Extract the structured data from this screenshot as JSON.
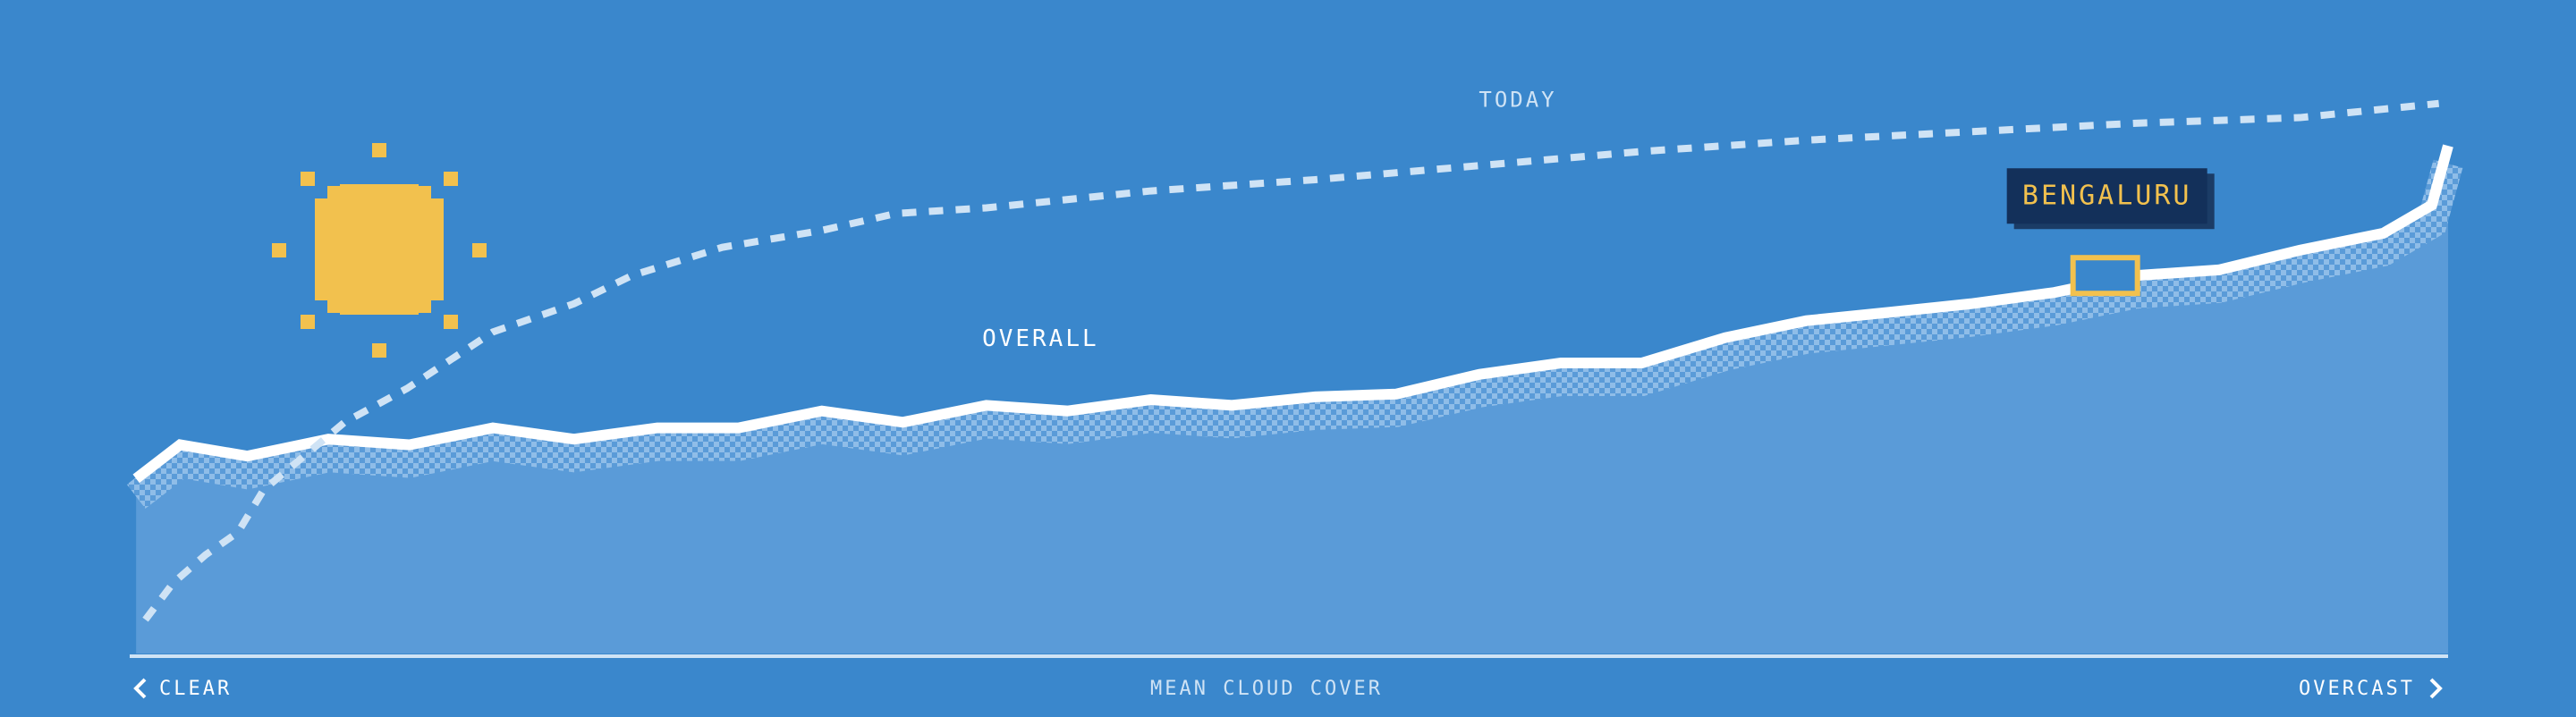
{
  "chart_data": {
    "type": "area",
    "title": "MEAN CLOUD COVER",
    "x_start_label": "CLEAR",
    "x_end_label": "OVERCAST",
    "xlim": [
      0,
      100
    ],
    "ylim": [
      0,
      100
    ],
    "series": [
      {
        "name": "OVERALL",
        "color": "#5a9bd8",
        "x": [
          0.2,
          2.1,
          5,
          8.5,
          12,
          15.6,
          19.1,
          22.7,
          26.2,
          29.8,
          33.3,
          36.9,
          40.4,
          44,
          47.5,
          51.1,
          54.6,
          58.2,
          61.7,
          65.2,
          68.8,
          72.3,
          75.9,
          79.4,
          83,
          86.5,
          90.1,
          93.6,
          97.2,
          99.3,
          100
        ],
        "values": [
          31,
          37,
          35,
          38,
          37,
          40,
          38,
          40,
          40,
          43,
          41,
          44,
          43,
          45,
          44,
          45.5,
          46,
          49.5,
          51.5,
          51.5,
          56,
          59,
          60.5,
          62,
          64,
          67,
          68,
          71.5,
          74.5,
          79.5,
          90
        ]
      },
      {
        "name": "TODAY",
        "color": "#cfe3f5",
        "x": [
          0.6,
          1.8,
          3.2,
          4.6,
          5.7,
          9.2,
          11.9,
          15.6,
          19.1,
          21.6,
          25.5,
          29.8,
          33,
          36.9,
          44,
          51.1,
          58.2,
          65.2,
          72.3,
          79.4,
          86.5,
          93.6,
          99.6
        ],
        "values": [
          6,
          12.5,
          17.5,
          21.5,
          29,
          41,
          47,
          57,
          62,
          67,
          72,
          75,
          78,
          79,
          82,
          84,
          86.5,
          89,
          91,
          92.5,
          94,
          95,
          97.5
        ]
      }
    ],
    "annotation": {
      "label": "BENGALURU",
      "x": 85.2,
      "y": 67
    }
  }
}
